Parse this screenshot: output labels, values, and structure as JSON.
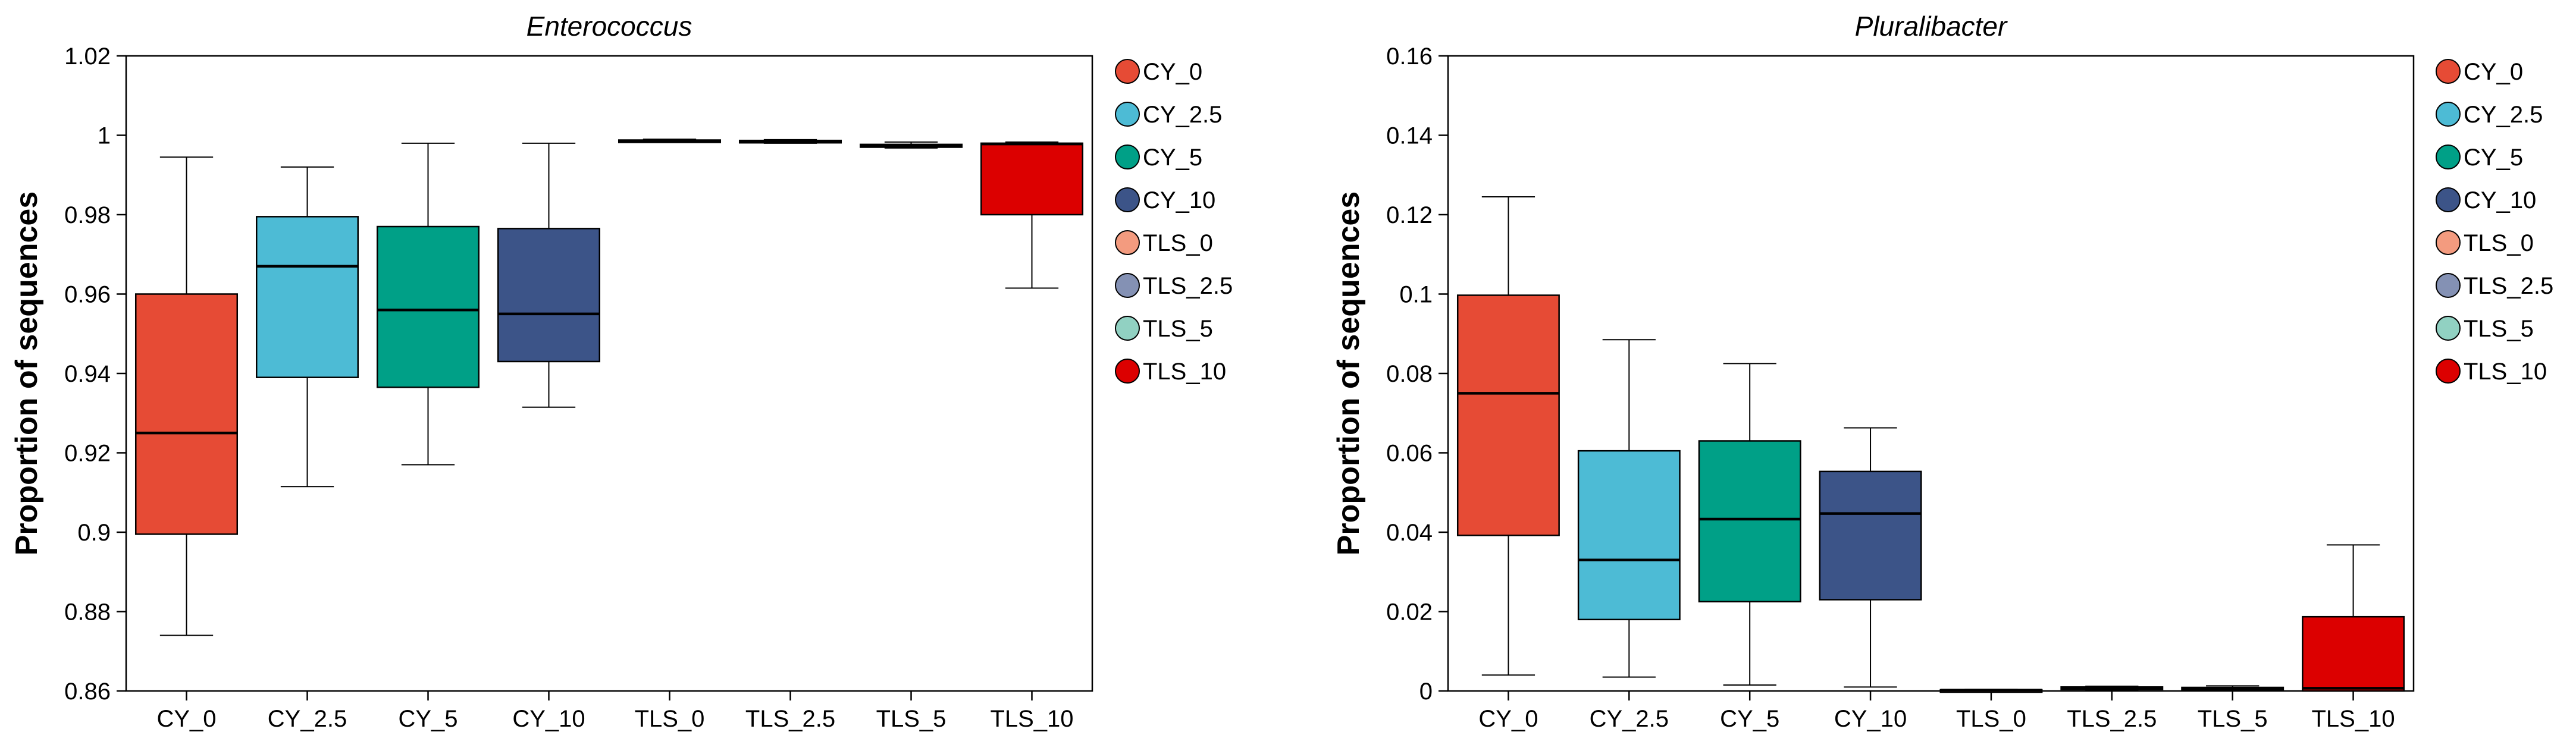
{
  "chart_data": [
    {
      "type": "boxplot",
      "title": "Enterococcus",
      "xlabel": "",
      "ylabel": "Proportion of sequences",
      "ylim": [
        0.86,
        1.02
      ],
      "yticks": [
        0.86,
        0.88,
        0.9,
        0.92,
        0.94,
        0.96,
        0.98,
        1,
        1.02
      ],
      "ytick_labels": [
        "0.86",
        "0.88",
        "0.9",
        "0.92",
        "0.94",
        "0.96",
        "0.98",
        "1",
        "1.02"
      ],
      "categories": [
        "CY_0",
        "CY_2.5",
        "CY_5",
        "CY_10",
        "TLS_0",
        "TLS_2.5",
        "TLS_5",
        "TLS_10"
      ],
      "boxes": [
        {
          "name": "CY_0",
          "whisker_low": 0.874,
          "q1": 0.8995,
          "median": 0.925,
          "q3": 0.96,
          "whisker_high": 0.9945
        },
        {
          "name": "CY_2.5",
          "whisker_low": 0.9115,
          "q1": 0.939,
          "median": 0.967,
          "q3": 0.9795,
          "whisker_high": 0.992
        },
        {
          "name": "CY_5",
          "whisker_low": 0.917,
          "q1": 0.9365,
          "median": 0.956,
          "q3": 0.977,
          "whisker_high": 0.998
        },
        {
          "name": "CY_10",
          "whisker_low": 0.9315,
          "q1": 0.943,
          "median": 0.955,
          "q3": 0.9765,
          "whisker_high": 0.998
        },
        {
          "name": "TLS_0",
          "whisker_low": 0.9982,
          "q1": 0.9983,
          "median": 0.9985,
          "q3": 0.9988,
          "whisker_high": 0.999
        },
        {
          "name": "TLS_2.5",
          "whisker_low": 0.998,
          "q1": 0.9982,
          "median": 0.9984,
          "q3": 0.9987,
          "whisker_high": 0.9989
        },
        {
          "name": "TLS_5",
          "whisker_low": 0.9968,
          "q1": 0.997,
          "median": 0.9973,
          "q3": 0.9977,
          "whisker_high": 0.9983
        },
        {
          "name": "TLS_10",
          "whisker_low": 0.9615,
          "q1": 0.98,
          "median": 0.9978,
          "q3": 0.998,
          "whisker_high": 0.9983
        }
      ]
    },
    {
      "type": "boxplot",
      "title": "Pluralibacter",
      "xlabel": "",
      "ylabel": "Proportion of sequences",
      "ylim": [
        0,
        0.16
      ],
      "yticks": [
        0,
        0.02,
        0.04,
        0.06,
        0.08,
        0.1,
        0.12,
        0.14,
        0.16
      ],
      "ytick_labels": [
        "0",
        "0.02",
        "0.04",
        "0.06",
        "0.08",
        "0.1",
        "0.12",
        "0.14",
        "0.16"
      ],
      "categories": [
        "CY_0",
        "CY_2.5",
        "CY_5",
        "CY_10",
        "TLS_0",
        "TLS_2.5",
        "TLS_5",
        "TLS_10"
      ],
      "boxes": [
        {
          "name": "CY_0",
          "whisker_low": 0.004,
          "q1": 0.0392,
          "median": 0.075,
          "q3": 0.0997,
          "whisker_high": 0.1245
        },
        {
          "name": "CY_2.5",
          "whisker_low": 0.0035,
          "q1": 0.018,
          "median": 0.033,
          "q3": 0.0605,
          "whisker_high": 0.0885
        },
        {
          "name": "CY_5",
          "whisker_low": 0.0015,
          "q1": 0.0225,
          "median": 0.0433,
          "q3": 0.063,
          "whisker_high": 0.0825
        },
        {
          "name": "CY_10",
          "whisker_low": 0.001,
          "q1": 0.023,
          "median": 0.0447,
          "q3": 0.0553,
          "whisker_high": 0.0663
        },
        {
          "name": "TLS_0",
          "whisker_low": 0.0,
          "q1": 0.0001,
          "median": 0.0002,
          "q3": 0.0003,
          "whisker_high": 0.0004
        },
        {
          "name": "TLS_2.5",
          "whisker_low": 0.0002,
          "q1": 0.0004,
          "median": 0.0007,
          "q3": 0.001,
          "whisker_high": 0.0012
        },
        {
          "name": "TLS_5",
          "whisker_low": 0.0001,
          "q1": 0.0003,
          "median": 0.0006,
          "q3": 0.0009,
          "whisker_high": 0.0013
        },
        {
          "name": "TLS_10",
          "whisker_low": 0.0,
          "q1": 0.0,
          "median": 0.0007,
          "q3": 0.0187,
          "whisker_high": 0.0368
        }
      ]
    }
  ],
  "legend": {
    "position": "right",
    "items": [
      {
        "label": "CY_0",
        "color": "#E64B35"
      },
      {
        "label": "CY_2.5",
        "color": "#4DBBD5"
      },
      {
        "label": "CY_5",
        "color": "#00A087"
      },
      {
        "label": "CY_10",
        "color": "#3C5488"
      },
      {
        "label": "TLS_0",
        "color": "#F39B7F"
      },
      {
        "label": "TLS_2.5",
        "color": "#8491B4"
      },
      {
        "label": "TLS_5",
        "color": "#91D1C2"
      },
      {
        "label": "TLS_10",
        "color": "#DC0000"
      }
    ]
  }
}
